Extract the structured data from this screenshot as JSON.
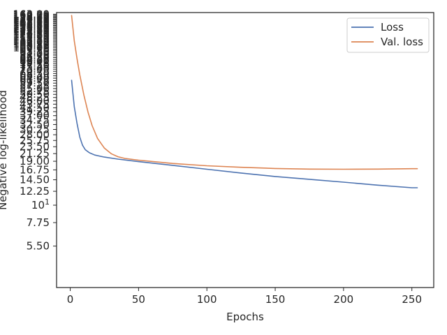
{
  "chart_data": {
    "type": "line",
    "xlabel": "Epochs",
    "ylabel": "Negative log-likelihood",
    "xlim": [
      -10,
      266
    ],
    "ylim": [
      3.0,
      167.0
    ],
    "yscale": "log",
    "x_ticks": [
      0,
      50,
      100,
      150,
      200,
      250
    ],
    "x_tick_labels": [
      "0",
      "50",
      "100",
      "150",
      "200",
      "250"
    ],
    "y_ticks": [
      5.5,
      7.75,
      10,
      12.25,
      14.5,
      16.75,
      19.0,
      21.25,
      23.5,
      25.75,
      28.0,
      30.25,
      32.5,
      34.75,
      37.0,
      39.25,
      41.5,
      43.75,
      46.0,
      48.25,
      50.5,
      52.75,
      55.0,
      57.25,
      59.5,
      61.75,
      64.0,
      66.25,
      68.5,
      70.75,
      73.0,
      75.25,
      77.5,
      79.75,
      82.0,
      84.25,
      86.5,
      88.75,
      91.0,
      93.25,
      95.5,
      97.75,
      100.0,
      102.25,
      104.5,
      106.75,
      109.0,
      111.25,
      113.5,
      115.75,
      118.0,
      120.25,
      122.5,
      124.75,
      127.0,
      129.25,
      131.5,
      133.75,
      136.0,
      138.25,
      140.5,
      142.75,
      145.0,
      147.25,
      149.5,
      151.75,
      154.0,
      156.25,
      158.5,
      160.75,
      163.0
    ],
    "y_tick_labels": [
      "5.50",
      "7.75",
      "10^1",
      "12.25",
      "14.50",
      "16.75",
      "19.00",
      "21.25",
      "23.50",
      "25.75",
      "28.00",
      "30.25",
      "32.50",
      "34.75",
      "37.00",
      "39.25",
      "41.50",
      "43.75",
      "46.00",
      "48.25",
      "50.50",
      "52.75",
      "55.00",
      "57.25",
      "59.50",
      "61.75",
      "64.00",
      "66.25",
      "68.50",
      "70.75",
      "73.00",
      "75.25",
      "77.50",
      "79.75",
      "82.00",
      "84.25",
      "86.50",
      "88.75",
      "91.00",
      "93.25",
      "95.50",
      "97.75",
      "100.00",
      "102.25",
      "104.50",
      "106.75",
      "109.00",
      "111.25",
      "113.50",
      "115.75",
      "118.00",
      "120.25",
      "122.50",
      "124.75",
      "127.00",
      "129.25",
      "131.50",
      "133.75",
      "136.00",
      "138.25",
      "140.50",
      "142.75",
      "145.00",
      "147.25",
      "149.50",
      "151.75",
      "154.00",
      "156.25",
      "158.50",
      "160.75",
      "163.00"
    ],
    "grid": false,
    "legend_position": "top-right",
    "series": [
      {
        "name": "Loss",
        "color": "#4c72b0",
        "x": [
          1,
          3,
          5,
          7,
          9,
          11,
          14,
          18,
          25,
          35,
          50,
          75,
          100,
          125,
          150,
          175,
          200,
          225,
          250,
          254
        ],
        "y": [
          62.0,
          42.0,
          33.0,
          27.0,
          24.0,
          22.5,
          21.5,
          20.8,
          20.2,
          19.6,
          18.9,
          17.9,
          16.9,
          16.0,
          15.2,
          14.6,
          14.0,
          13.4,
          12.9,
          12.9
        ]
      },
      {
        "name": "Val. loss",
        "color": "#dd8452",
        "x": [
          1,
          3,
          5,
          7,
          10,
          13,
          16,
          20,
          25,
          30,
          35,
          40,
          50,
          75,
          100,
          125,
          150,
          175,
          200,
          225,
          250,
          254
        ],
        "y": [
          160.0,
          110.0,
          85.0,
          67.0,
          50.0,
          39.0,
          32.0,
          26.5,
          23.0,
          21.2,
          20.3,
          19.8,
          19.3,
          18.4,
          17.8,
          17.4,
          17.1,
          16.95,
          16.9,
          16.95,
          17.05,
          17.05
        ]
      }
    ]
  }
}
